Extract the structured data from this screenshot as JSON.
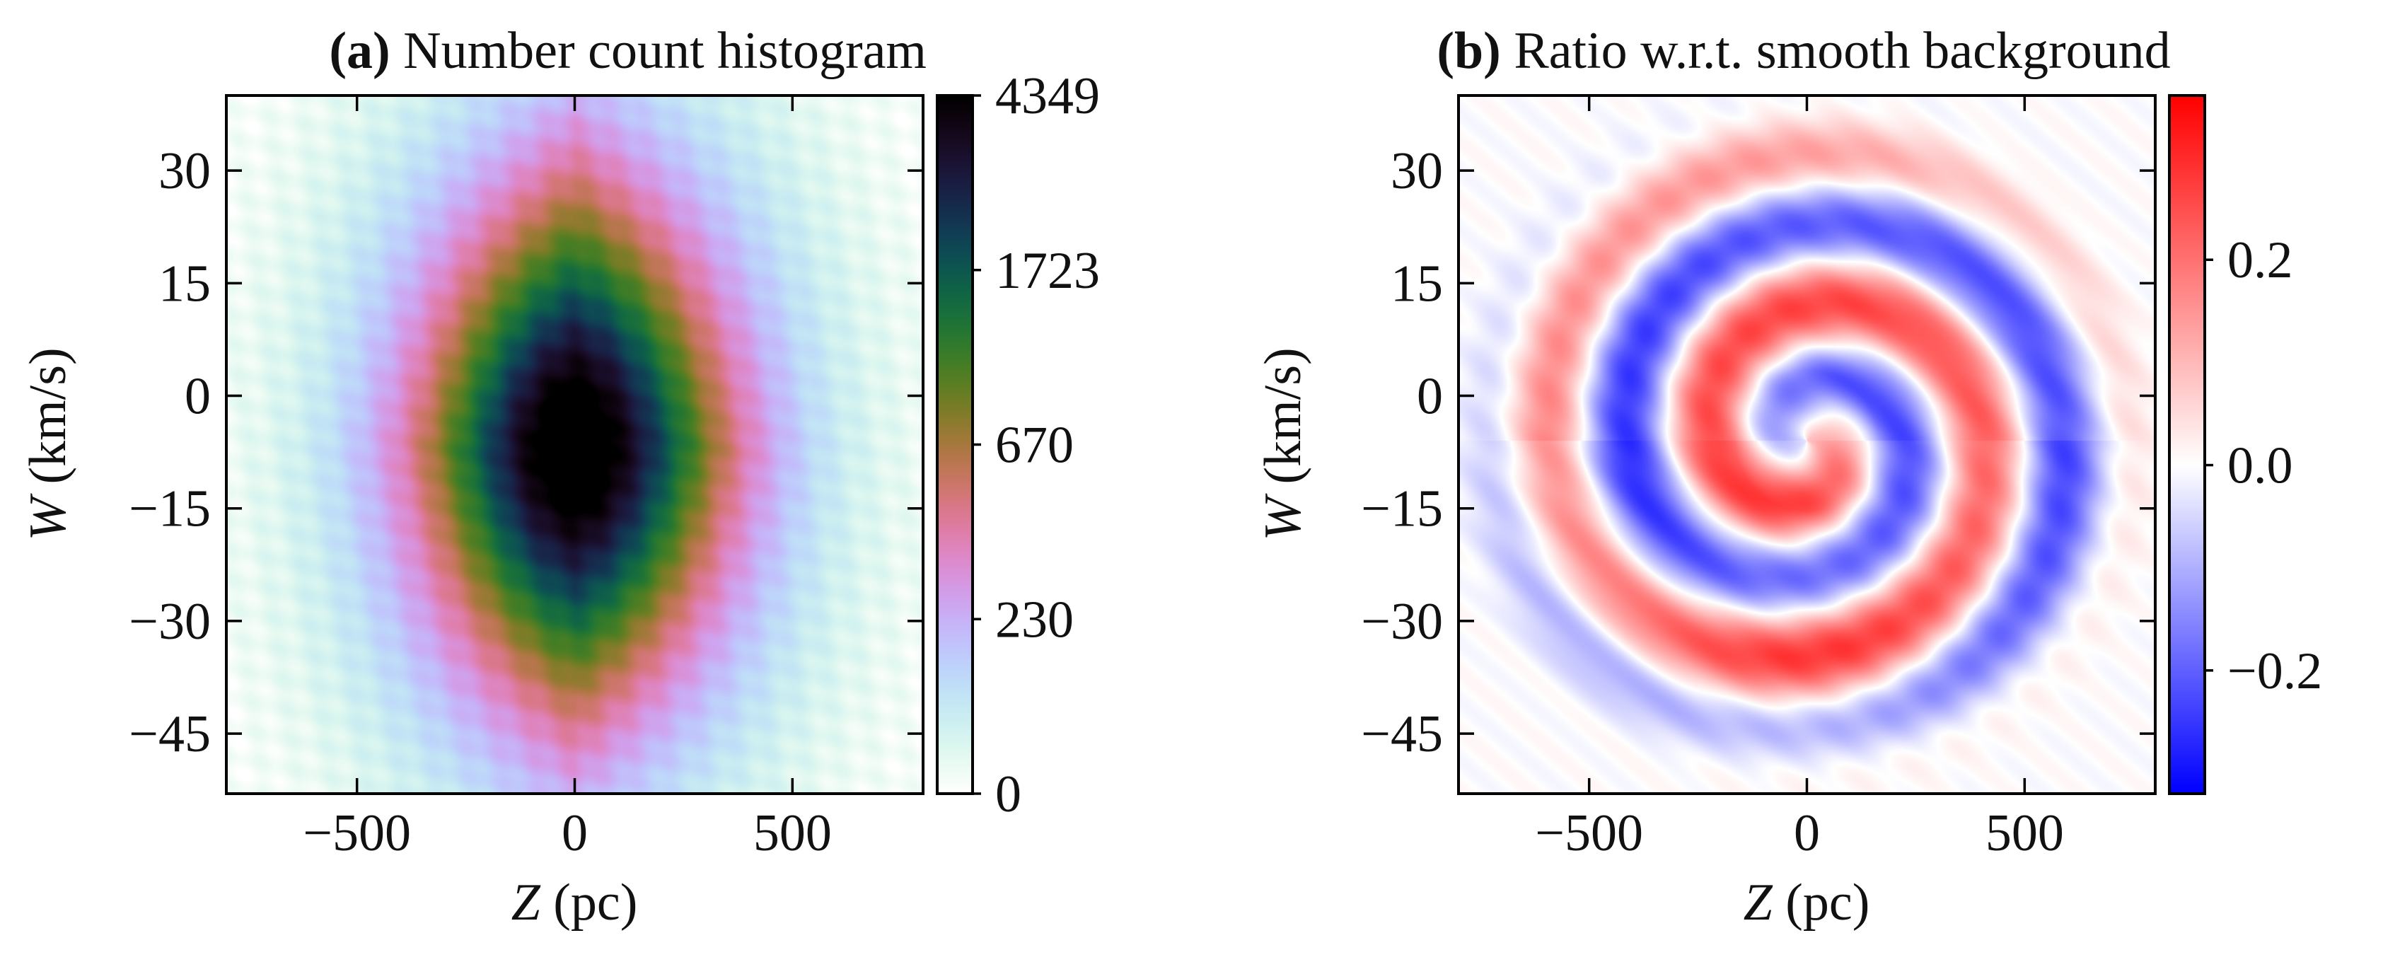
{
  "chart_data": [
    {
      "type": "heatmap",
      "panel_letter": "(a)",
      "title": "Number count histogram",
      "xlabel": "Z (pc)",
      "xlabel_var": "Z",
      "xlabel_unit": "(pc)",
      "ylabel": "W (km/s)",
      "ylabel_var": "W",
      "ylabel_unit": "(km/s)",
      "xlim": [
        -800,
        800
      ],
      "ylim": [
        -53,
        40
      ],
      "xticks": [
        -500,
        0,
        500
      ],
      "xtick_labels": [
        "−500",
        "0",
        "500"
      ],
      "yticks": [
        30,
        15,
        0,
        -15,
        -30,
        -45
      ],
      "ytick_labels": [
        "30",
        "15",
        "0",
        "−15",
        "−30",
        "−45"
      ],
      "colormap": "cubehelix_r",
      "colorbar_ticks": [
        "4349",
        "1723",
        "670",
        "230",
        "0"
      ],
      "colorbar_fractions": [
        1.0,
        0.75,
        0.5,
        0.25,
        0.0
      ],
      "peak": {
        "z": 0,
        "w": -7,
        "count": 4349
      }
    },
    {
      "type": "heatmap",
      "panel_letter": "(b)",
      "title": "Ratio w.r.t. smooth background",
      "xlabel": "Z (pc)",
      "xlabel_var": "Z",
      "xlabel_unit": "(pc)",
      "ylabel": "W (km/s)",
      "ylabel_var": "W",
      "ylabel_unit": "(km/s)",
      "xlim": [
        -800,
        800
      ],
      "ylim": [
        -53,
        40
      ],
      "xticks": [
        -500,
        0,
        500
      ],
      "xtick_labels": [
        "−500",
        "0",
        "500"
      ],
      "yticks": [
        30,
        15,
        0,
        -15,
        -30,
        -45
      ],
      "ytick_labels": [
        "30",
        "15",
        "0",
        "−15",
        "−30",
        "−45"
      ],
      "colormap": "bwr",
      "colorbar_range": [
        -0.32,
        0.36
      ],
      "colorbar_ticks": [
        0.2,
        0.0,
        -0.2
      ],
      "colorbar_tick_labels": [
        "0.2",
        "0.0",
        "−0.2"
      ],
      "pattern": "two-armed phase spiral"
    }
  ]
}
